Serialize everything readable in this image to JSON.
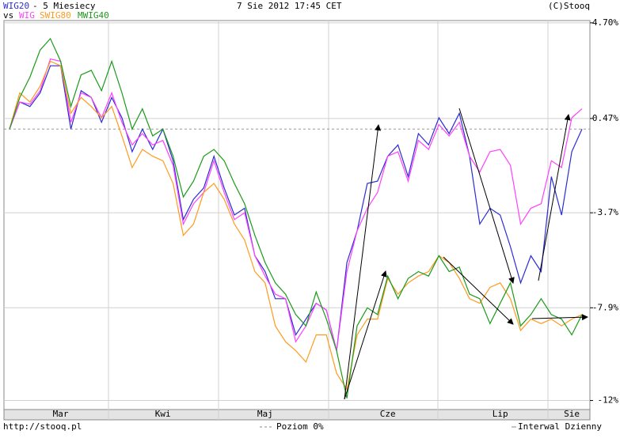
{
  "chart_data": {
    "type": "line",
    "title": "- 5 Miesiecy",
    "vs_label": "vs",
    "date": "7 Sie 2012 17:45 CET",
    "source": "(C)Stooq",
    "footer": {
      "url": "http://stooq.pl",
      "zero_level": "Poziom 0%",
      "interval": "Interwal Dzienny"
    },
    "categories": [
      null,
      null,
      null,
      null,
      null,
      "Mar",
      null,
      null,
      null,
      null,
      null,
      null,
      null,
      null,
      null,
      "Kwi",
      null,
      null,
      null,
      null,
      null,
      null,
      null,
      null,
      null,
      "Maj",
      null,
      null,
      null,
      null,
      null,
      null,
      null,
      null,
      null,
      null,
      null,
      "Cze",
      null,
      null,
      null,
      null,
      null,
      null,
      null,
      null,
      null,
      null,
      "Lip",
      null,
      null,
      null,
      null,
      null,
      null,
      "Sie",
      null
    ],
    "series": [
      {
        "name": "WIG20",
        "color": "#2c2cd6",
        "values": [
          0,
          1.2,
          1.0,
          1.6,
          2.8,
          2.8,
          0,
          1.7,
          1.4,
          0.3,
          1.4,
          0.5,
          -1.0,
          0,
          -0.9,
          0,
          -1.4,
          -4.0,
          -3.1,
          -2.6,
          -1.2,
          -2.6,
          -3.8,
          -3.5,
          -5.6,
          -6.3,
          -7.5,
          -7.5,
          -9.1,
          -8.4,
          -7.7,
          -8.0,
          -9.8,
          -5.9,
          -4.5,
          -2.4,
          -2.3,
          -1.2,
          -0.7,
          -2.1,
          -0.2,
          -0.7,
          0.5,
          -0.2,
          0.7,
          -1.2,
          -4.2,
          -3.5,
          -3.8,
          -5.2,
          -6.8,
          -5.6,
          -6.3,
          -2.1,
          -3.8,
          -1.0,
          0
        ]
      },
      {
        "name": "WIG",
        "color": "#ff40ff",
        "values": [
          0,
          1.2,
          1.1,
          1.7,
          3.1,
          3.0,
          0.3,
          1.6,
          1.4,
          0.5,
          1.6,
          0.3,
          -0.7,
          -0.2,
          -0.7,
          -0.5,
          -1.6,
          -4.2,
          -3.3,
          -2.8,
          -1.4,
          -2.8,
          -4.0,
          -3.7,
          -5.6,
          -6.5,
          -7.3,
          -7.5,
          -9.4,
          -8.7,
          -7.7,
          -8.0,
          -9.8,
          -6.3,
          -4.5,
          -3.5,
          -2.8,
          -1.2,
          -1.0,
          -2.3,
          -0.5,
          -0.9,
          0.2,
          -0.3,
          0.3,
          -1.2,
          -1.9,
          -1.0,
          -0.9,
          -1.6,
          -4.2,
          -3.5,
          -3.3,
          -1.4,
          -1.7,
          0.5,
          0.9
        ]
      },
      {
        "name": "SWIG80",
        "color": "#ff9a1f",
        "values": [
          0,
          1.6,
          1.2,
          1.9,
          3.0,
          2.8,
          0.7,
          1.4,
          1.0,
          0.5,
          1.0,
          -0.3,
          -1.7,
          -0.9,
          -1.2,
          -1.4,
          -2.4,
          -4.7,
          -4.2,
          -2.8,
          -2.4,
          -3.1,
          -4.2,
          -4.9,
          -6.3,
          -6.8,
          -8.7,
          -9.4,
          -9.8,
          -10.3,
          -9.1,
          -9.1,
          -10.8,
          -11.5,
          -9.1,
          -8.4,
          -8.4,
          -6.6,
          -7.3,
          -6.8,
          -6.5,
          -6.3,
          -5.6,
          -5.9,
          -6.6,
          -7.5,
          -7.7,
          -7.0,
          -6.8,
          -7.5,
          -8.9,
          -8.4,
          -8.6,
          -8.4,
          -8.7,
          -8.4,
          -8.2
        ]
      },
      {
        "name": "MWIG40",
        "color": "#1a9a1a",
        "values": [
          0,
          1.4,
          2.3,
          3.5,
          4.0,
          3.0,
          1.0,
          2.4,
          2.6,
          1.7,
          3.0,
          1.6,
          0,
          0.9,
          -0.3,
          0,
          -1.2,
          -3.0,
          -2.3,
          -1.2,
          -0.9,
          -1.4,
          -2.4,
          -3.3,
          -4.7,
          -5.9,
          -6.8,
          -7.3,
          -8.2,
          -8.7,
          -7.2,
          -8.4,
          -9.8,
          -11.9,
          -8.7,
          -7.9,
          -8.2,
          -6.5,
          -7.5,
          -6.6,
          -6.3,
          -6.5,
          -5.6,
          -6.3,
          -6.1,
          -7.3,
          -7.5,
          -8.6,
          -7.7,
          -6.8,
          -8.7,
          -8.2,
          -7.5,
          -8.2,
          -8.4,
          -9.1,
          -8.2
        ]
      }
    ],
    "ylim": [
      -12.4,
      4.8
    ],
    "yticks": [
      {
        "value": 4.7,
        "label": "4.70%"
      },
      {
        "value": 0.47,
        "label": "0.47%"
      },
      {
        "value": -3.7,
        "label": "-3.7%"
      },
      {
        "value": -7.9,
        "label": "-7.9%"
      },
      {
        "value": -12,
        "label": "-12%"
      }
    ],
    "grid": true
  }
}
